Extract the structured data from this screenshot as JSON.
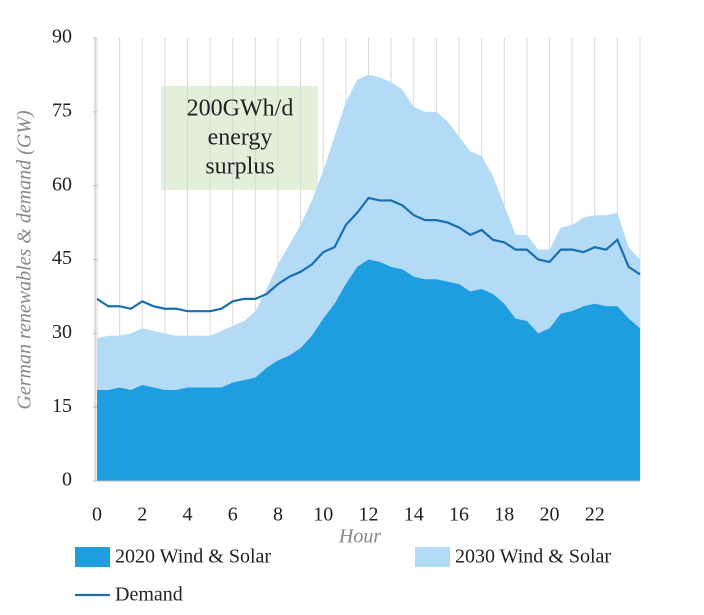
{
  "chart_data": {
    "type": "area",
    "ylabel": "German renewables & demand (GW)",
    "xlabel": "Hour",
    "annotation": [
      "200GWh/d",
      "energy",
      "surplus"
    ],
    "x": [
      0,
      0.5,
      1,
      1.5,
      2,
      2.5,
      3,
      3.5,
      4,
      4.5,
      5,
      5.5,
      6,
      6.5,
      7,
      7.5,
      8,
      8.5,
      9,
      9.5,
      10,
      10.5,
      11,
      11.5,
      12,
      12.5,
      13,
      13.5,
      14,
      14.5,
      15,
      15.5,
      16,
      16.5,
      17,
      17.5,
      18,
      18.5,
      19,
      19.5,
      20,
      20.5,
      21,
      21.5,
      22,
      22.5,
      23,
      23.5,
      24
    ],
    "series": [
      {
        "name": "2030 Wind & Solar",
        "color": "#b3dbf5",
        "kind": "area",
        "values": [
          29,
          29.5,
          29.5,
          30,
          31,
          30.5,
          30,
          29.5,
          29.5,
          29.5,
          29.5,
          30.5,
          31.5,
          32.5,
          34.5,
          39,
          44,
          48,
          52,
          57,
          63,
          70,
          77,
          81.5,
          82.5,
          82,
          81,
          79.5,
          76,
          75,
          75,
          73,
          70,
          67,
          66,
          62,
          56,
          50,
          50,
          47,
          47,
          51.5,
          52,
          53.5,
          54,
          54,
          54.5,
          47.5,
          45
        ]
      },
      {
        "name": "2020 Wind & Solar",
        "color": "#1e9de0",
        "kind": "area",
        "values": [
          18.5,
          18.5,
          19,
          18.5,
          19.5,
          19,
          18.5,
          18.5,
          19,
          19,
          19,
          19,
          20,
          20.5,
          21,
          23,
          24.5,
          25.5,
          27,
          29.5,
          33,
          36,
          40,
          43.5,
          45,
          44.5,
          43.5,
          43,
          41.5,
          41,
          41,
          40.5,
          40,
          38.5,
          39,
          38,
          36,
          33,
          32.5,
          30,
          31,
          34,
          34.5,
          35.5,
          36,
          35.5,
          35.5,
          33,
          31
        ]
      },
      {
        "name": "Demand",
        "color": "#1a6fb0",
        "kind": "line",
        "values": [
          37,
          35.5,
          35.5,
          35,
          36.5,
          35.5,
          35,
          35,
          34.5,
          34.5,
          34.5,
          35,
          36.5,
          37,
          37,
          38,
          40,
          41.5,
          42.5,
          44,
          46.5,
          47.5,
          52,
          54.5,
          57.5,
          57,
          57,
          56,
          54,
          53,
          53,
          52.5,
          51.5,
          50,
          51,
          49,
          48.5,
          47,
          47,
          45,
          44.5,
          47,
          47,
          46.5,
          47.5,
          47,
          49,
          43.5,
          42
        ]
      }
    ],
    "legend_order": [
      1,
      0,
      2
    ],
    "xlim": [
      0,
      24
    ],
    "xticks": [
      0,
      2,
      4,
      6,
      8,
      10,
      12,
      14,
      16,
      18,
      20,
      22
    ],
    "minor_xticks": [
      1,
      3,
      5,
      7,
      9,
      11,
      13,
      15,
      17,
      19,
      21,
      23,
      24
    ],
    "ylim": [
      0,
      90
    ],
    "yticks": [
      0,
      15,
      30,
      45,
      60,
      75,
      90
    ],
    "grid": true
  }
}
